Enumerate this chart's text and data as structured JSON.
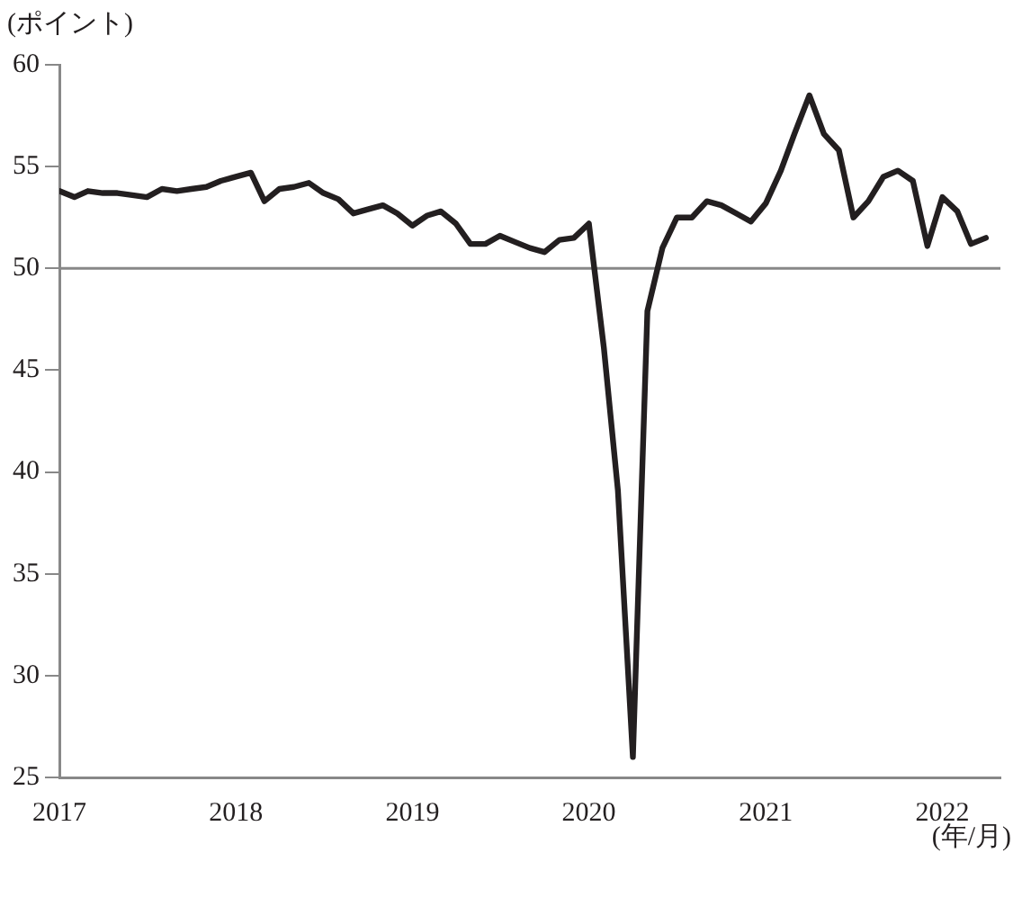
{
  "chart_data": {
    "type": "line",
    "ylabel": "(ポイント)",
    "xlabel": "(年/月)",
    "x": [
      "2017-01",
      "2017-02",
      "2017-03",
      "2017-04",
      "2017-05",
      "2017-06",
      "2017-07",
      "2017-08",
      "2017-09",
      "2017-10",
      "2017-11",
      "2017-12",
      "2018-01",
      "2018-02",
      "2018-03",
      "2018-04",
      "2018-05",
      "2018-06",
      "2018-07",
      "2018-08",
      "2018-09",
      "2018-10",
      "2018-11",
      "2018-12",
      "2019-01",
      "2019-02",
      "2019-03",
      "2019-04",
      "2019-05",
      "2019-06",
      "2019-07",
      "2019-08",
      "2019-09",
      "2019-10",
      "2019-11",
      "2019-12",
      "2020-01",
      "2020-02",
      "2020-03",
      "2020-04",
      "2020-05",
      "2020-06",
      "2020-07",
      "2020-08",
      "2020-09",
      "2020-10",
      "2020-11",
      "2020-12",
      "2021-01",
      "2021-02",
      "2021-03",
      "2021-04",
      "2021-05",
      "2021-06",
      "2021-07",
      "2021-08",
      "2021-09",
      "2021-10",
      "2021-11",
      "2021-12",
      "2022-01",
      "2022-02",
      "2022-03",
      "2022-04"
    ],
    "series": [
      {
        "color": "#231f20",
        "values": [
          53.8,
          53.5,
          53.8,
          53.7,
          53.7,
          53.6,
          53.5,
          53.9,
          53.8,
          53.9,
          54.0,
          54.3,
          54.5,
          54.7,
          53.3,
          53.9,
          54.0,
          54.2,
          53.7,
          53.4,
          52.7,
          52.9,
          53.1,
          52.7,
          52.1,
          52.6,
          52.8,
          52.2,
          51.2,
          51.2,
          51.6,
          51.3,
          51.0,
          50.8,
          51.4,
          51.5,
          52.2,
          46.1,
          39.1,
          26.0,
          47.9,
          51.0,
          52.5,
          52.5,
          53.3,
          53.1,
          52.7,
          52.3,
          53.2,
          54.8,
          56.6,
          58.5,
          56.6,
          55.8,
          52.5,
          53.3,
          54.5,
          54.8,
          54.3,
          51.1,
          53.5,
          52.8,
          51.2,
          51.5
        ]
      }
    ],
    "xlim": [
      "2017",
      "2022-05"
    ],
    "xticks": [
      {
        "value": "2017",
        "label": "2017"
      },
      {
        "value": "2018",
        "label": "2018"
      },
      {
        "value": "2019",
        "label": "2019"
      },
      {
        "value": "2020",
        "label": "2020"
      },
      {
        "value": "2021",
        "label": "2021"
      },
      {
        "value": "2022",
        "label": "2022"
      }
    ],
    "ylim": [
      25,
      60
    ],
    "yticks": [
      25,
      30,
      35,
      40,
      45,
      50,
      55,
      60
    ],
    "ref_lines": [
      {
        "axis": "y",
        "value": 50,
        "color": "#888888"
      }
    ],
    "grid": false,
    "legend": false,
    "marker": "none",
    "line_style": "solid"
  }
}
